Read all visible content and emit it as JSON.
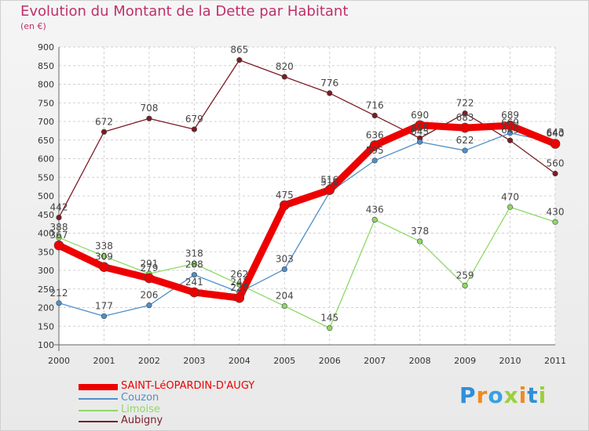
{
  "chart_data": {
    "type": "line",
    "title": "Evolution du Montant de la Dette par Habitant",
    "subtitle": "(en €)",
    "x": [
      "2000",
      "2001",
      "2002",
      "2003",
      "2004",
      "2005",
      "2006",
      "2007",
      "2008",
      "2009",
      "2010",
      "2011"
    ],
    "ylim": [
      100,
      900
    ],
    "yticks": [
      100,
      150,
      200,
      250,
      300,
      350,
      400,
      450,
      500,
      550,
      600,
      650,
      700,
      750,
      800,
      850,
      900
    ],
    "grid": true,
    "legend_position": "bottom-left",
    "series": [
      {
        "name": "Aubigny",
        "color": "#7b1c24",
        "values": [
          442,
          672,
          708,
          679,
          865,
          820,
          776,
          716,
          655,
          722,
          649,
          560
        ],
        "labels": [
          "442",
          "672",
          "708",
          "679",
          "865",
          "820",
          "776",
          "716",
          "655",
          "722",
          "649",
          "560"
        ]
      },
      {
        "name": "Couzon",
        "color": "#4f8fc7",
        "values": [
          212,
          177,
          206,
          288,
          241,
          303,
          510,
          595,
          645,
          622,
          669,
          643
        ],
        "labels": [
          "212",
          "177",
          "206",
          "288",
          "241",
          "303",
          "510",
          "595",
          "645",
          "622",
          "669",
          "643"
        ]
      },
      {
        "name": "Limoise",
        "color": "#8fd866",
        "values": [
          388,
          338,
          291,
          318,
          262,
          204,
          145,
          436,
          378,
          259,
          470,
          430
        ],
        "labels": [
          "388",
          "338",
          "291",
          "318",
          "262",
          "204",
          "145",
          "436",
          "378",
          "259",
          "470",
          "430"
        ]
      },
      {
        "name": "SAINT-LéOPARDIN-D'AUGY",
        "color": "#ee0000",
        "values": [
          367,
          309,
          279,
          241,
          226,
          475,
          516,
          636,
          690,
          683,
          689,
          640
        ],
        "labels": [
          "367",
          "309",
          "279",
          "241",
          "226",
          "475",
          "516",
          "636",
          "690",
          "683",
          "689",
          "640"
        ]
      }
    ]
  },
  "legend": {
    "items": [
      {
        "label": "SAINT-LéOPARDIN-D'AUGY",
        "color": "#ee0000"
      },
      {
        "label": "Couzon",
        "color": "#4f8fc7"
      },
      {
        "label": "Limoise",
        "color": "#8fd866"
      },
      {
        "label": "Aubigny",
        "color": "#7b1c24"
      }
    ]
  },
  "logo": {
    "letters": [
      "P",
      "r",
      "o",
      "x",
      "i",
      "t",
      "i"
    ],
    "colors": [
      "#2f8fd8",
      "#f08a1c",
      "#3aa0e0",
      "#9ad03a",
      "#f08a1c",
      "#2f8fd8",
      "#9ad03a"
    ]
  }
}
